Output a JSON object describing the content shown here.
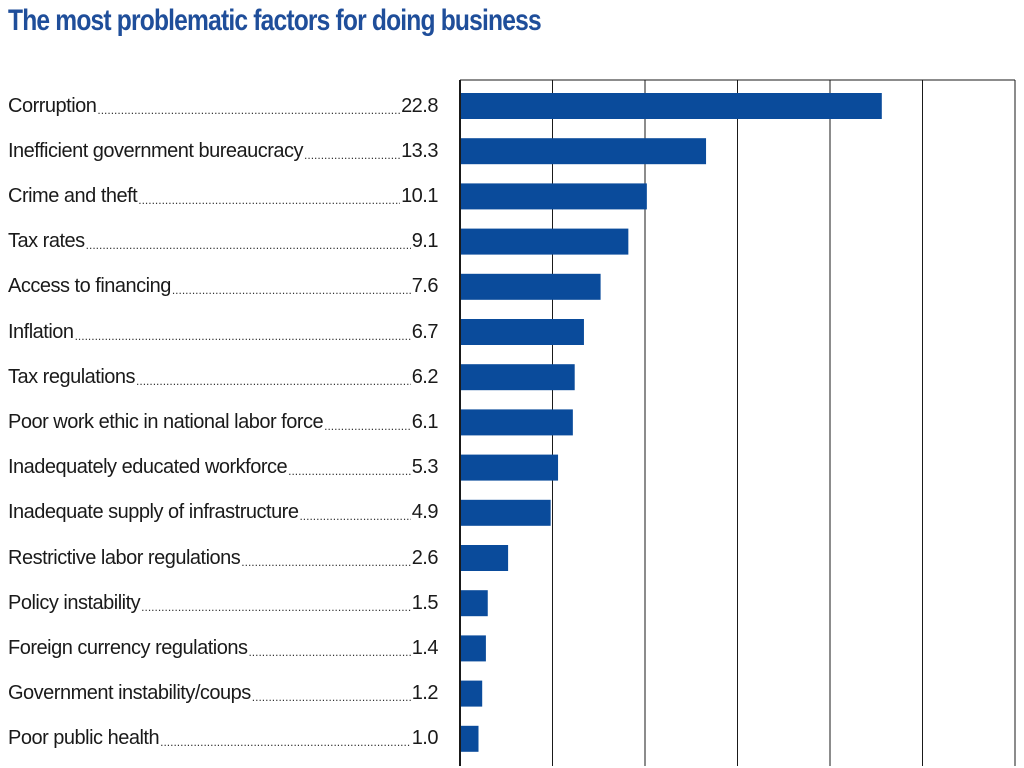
{
  "colors": {
    "title": "#1f4e9a",
    "bar": "#0a4b9b",
    "grid": "#1a1a1a"
  },
  "chart_data": {
    "type": "bar",
    "orientation": "horizontal",
    "title": "The most problematic factors for doing business",
    "xlabel": "",
    "ylabel": "",
    "xlim": [
      0,
      30
    ],
    "grid": true,
    "categories": [
      "Corruption",
      "Inefficient government bureaucracy",
      "Crime and theft",
      "Tax rates",
      "Access to financing",
      "Inflation",
      "Tax regulations",
      "Poor work ethic in national labor force",
      "Inadequately educated workforce",
      "Inadequate supply of infrastructure",
      "Restrictive labor regulations",
      "Policy instability",
      "Foreign currency regulations",
      "Government instability/coups",
      "Poor public health"
    ],
    "values": [
      22.8,
      13.3,
      10.1,
      9.1,
      7.6,
      6.7,
      6.2,
      6.1,
      5.3,
      4.9,
      2.6,
      1.5,
      1.4,
      1.2,
      1.0
    ],
    "value_labels": [
      "22.8",
      "13.3",
      "10.1",
      "9.1",
      "7.6",
      "6.7",
      "6.2",
      "6.1",
      "5.3",
      "4.9",
      "2.6",
      "1.5",
      "1.4",
      "1.2",
      "1.0"
    ]
  }
}
